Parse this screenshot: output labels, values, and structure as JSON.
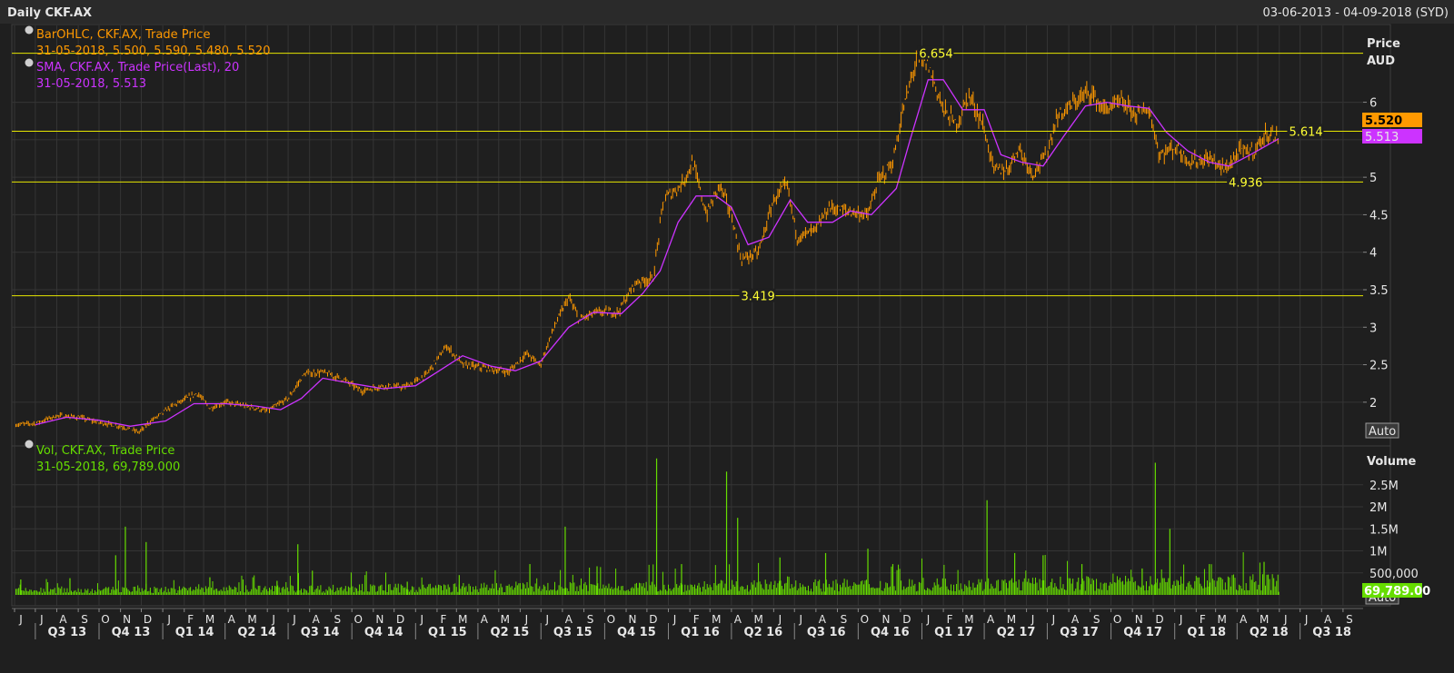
{
  "header": {
    "title": "Daily CKF.AX",
    "range": "03-06-2013 - 04-09-2018 (SYD)"
  },
  "colors": {
    "price": "#ff9900",
    "sma": "#cc33ff",
    "volume": "#66dd00",
    "hline": "#e6e600",
    "grid": "#353535",
    "background": "#1f1f1f"
  },
  "legend": {
    "ohlc_label": "BarOHLC, CKF.AX, Trade Price",
    "ohlc_values": "31-05-2018, 5.500, 5.590, 5.480, 5.520",
    "sma_label": "SMA, CKF.AX, Trade Price(Last),  20",
    "sma_values": "31-05-2018, 5.513",
    "vol_label": "Vol, CKF.AX, Trade Price",
    "vol_values": "31-05-2018, 69,789.000"
  },
  "price_axis": {
    "label_line1": "Price",
    "label_line2": "AUD",
    "last_price": "5.520",
    "last_sma": "5.513",
    "auto": "Auto"
  },
  "volume_axis": {
    "label": "Volume",
    "last_volume": "69,789.00",
    "auto": "Auto"
  },
  "chart_data": [
    {
      "type": "line",
      "title": "Daily CKF.AX",
      "ylabel": "Price AUD",
      "ylim": [
        1.55,
        7.0
      ],
      "yticks": [
        2,
        2.5,
        3,
        3.5,
        4,
        4.5,
        5,
        5.5,
        6
      ],
      "ytick_labels": [
        "2",
        "2.5",
        "3",
        "3.5",
        "4",
        "4.5",
        "5",
        "",
        "6"
      ],
      "x_range": [
        "2013-06-03",
        "2018-09-04"
      ],
      "series": [
        {
          "name": "BarOHLC, CKF.AX, Trade Price",
          "points": [
            [
              "2013-06-03",
              1.7
            ],
            [
              "2013-07-01",
              1.72
            ],
            [
              "2013-08-01",
              1.82
            ],
            [
              "2013-09-01",
              1.8
            ],
            [
              "2013-10-01",
              1.73
            ],
            [
              "2013-11-01",
              1.68
            ],
            [
              "2013-11-28",
              1.6
            ],
            [
              "2013-12-15",
              1.75
            ],
            [
              "2014-01-15",
              1.95
            ],
            [
              "2014-02-20",
              2.12
            ],
            [
              "2014-03-10",
              1.92
            ],
            [
              "2014-04-01",
              2.0
            ],
            [
              "2014-05-01",
              1.95
            ],
            [
              "2014-06-01",
              1.88
            ],
            [
              "2014-07-01",
              2.05
            ],
            [
              "2014-07-25",
              2.38
            ],
            [
              "2014-08-20",
              2.4
            ],
            [
              "2014-09-20",
              2.3
            ],
            [
              "2014-10-15",
              2.15
            ],
            [
              "2014-11-15",
              2.22
            ],
            [
              "2014-12-15",
              2.2
            ],
            [
              "2015-01-15",
              2.35
            ],
            [
              "2015-02-15",
              2.75
            ],
            [
              "2015-03-10",
              2.5
            ],
            [
              "2015-04-15",
              2.45
            ],
            [
              "2015-05-15",
              2.4
            ],
            [
              "2015-06-10",
              2.65
            ],
            [
              "2015-06-30",
              2.5
            ],
            [
              "2015-07-20",
              3.0
            ],
            [
              "2015-08-10",
              3.4
            ],
            [
              "2015-08-25",
              3.1
            ],
            [
              "2015-09-20",
              3.2
            ],
            [
              "2015-10-20",
              3.2
            ],
            [
              "2015-11-15",
              3.6
            ],
            [
              "2015-12-10",
              3.65
            ],
            [
              "2015-12-25",
              4.7
            ],
            [
              "2016-01-20",
              4.9
            ],
            [
              "2016-02-05",
              5.2
            ],
            [
              "2016-02-25",
              4.5
            ],
            [
              "2016-03-15",
              4.9
            ],
            [
              "2016-04-01",
              4.5
            ],
            [
              "2016-04-15",
              3.9
            ],
            [
              "2016-05-10",
              4.0
            ],
            [
              "2016-06-01",
              4.7
            ],
            [
              "2016-06-20",
              4.9
            ],
            [
              "2016-07-05",
              4.2
            ],
            [
              "2016-08-01",
              4.3
            ],
            [
              "2016-08-20",
              4.6
            ],
            [
              "2016-09-15",
              4.55
            ],
            [
              "2016-10-15",
              4.5
            ],
            [
              "2016-10-30",
              4.95
            ],
            [
              "2016-11-20",
              5.2
            ],
            [
              "2016-12-05",
              5.9
            ],
            [
              "2016-12-25",
              6.6
            ],
            [
              "2017-01-10",
              6.5
            ],
            [
              "2017-02-01",
              5.9
            ],
            [
              "2017-02-20",
              5.7
            ],
            [
              "2017-03-10",
              6.1
            ],
            [
              "2017-03-30",
              5.7
            ],
            [
              "2017-04-15",
              5.1
            ],
            [
              "2017-05-05",
              5.1
            ],
            [
              "2017-05-20",
              5.4
            ],
            [
              "2017-06-10",
              5.05
            ],
            [
              "2017-06-30",
              5.3
            ],
            [
              "2017-07-15",
              5.8
            ],
            [
              "2017-08-10",
              6.0
            ],
            [
              "2017-09-01",
              6.15
            ],
            [
              "2017-09-20",
              5.9
            ],
            [
              "2017-10-15",
              6.0
            ],
            [
              "2017-11-05",
              5.85
            ],
            [
              "2017-11-25",
              5.9
            ],
            [
              "2017-12-10",
              5.3
            ],
            [
              "2018-01-01",
              5.4
            ],
            [
              "2018-01-25",
              5.2
            ],
            [
              "2018-02-20",
              5.25
            ],
            [
              "2018-03-15",
              5.1
            ],
            [
              "2018-04-05",
              5.35
            ],
            [
              "2018-04-25",
              5.35
            ],
            [
              "2018-05-15",
              5.6
            ],
            [
              "2018-05-31",
              5.52
            ]
          ]
        },
        {
          "name": "SMA, CKF.AX, Trade Price(Last),  20",
          "points": [
            [
              "2013-07-01",
              1.7
            ],
            [
              "2013-08-15",
              1.8
            ],
            [
              "2013-10-01",
              1.76
            ],
            [
              "2013-11-15",
              1.68
            ],
            [
              "2014-01-05",
              1.75
            ],
            [
              "2014-02-15",
              1.98
            ],
            [
              "2014-04-01",
              1.98
            ],
            [
              "2014-05-15",
              1.95
            ],
            [
              "2014-06-20",
              1.9
            ],
            [
              "2014-07-20",
              2.05
            ],
            [
              "2014-08-20",
              2.32
            ],
            [
              "2014-10-01",
              2.25
            ],
            [
              "2014-11-15",
              2.18
            ],
            [
              "2015-01-01",
              2.22
            ],
            [
              "2015-02-01",
              2.4
            ],
            [
              "2015-03-10",
              2.62
            ],
            [
              "2015-04-20",
              2.48
            ],
            [
              "2015-05-25",
              2.42
            ],
            [
              "2015-07-01",
              2.55
            ],
            [
              "2015-08-10",
              3.0
            ],
            [
              "2015-09-15",
              3.2
            ],
            [
              "2015-10-25",
              3.18
            ],
            [
              "2015-11-25",
              3.45
            ],
            [
              "2015-12-20",
              3.75
            ],
            [
              "2016-01-15",
              4.4
            ],
            [
              "2016-02-10",
              4.75
            ],
            [
              "2016-03-10",
              4.75
            ],
            [
              "2016-04-01",
              4.6
            ],
            [
              "2016-04-25",
              4.1
            ],
            [
              "2016-05-25",
              4.2
            ],
            [
              "2016-06-25",
              4.7
            ],
            [
              "2016-07-20",
              4.4
            ],
            [
              "2016-08-25",
              4.4
            ],
            [
              "2016-09-20",
              4.55
            ],
            [
              "2016-10-20",
              4.5
            ],
            [
              "2016-11-25",
              4.85
            ],
            [
              "2016-12-15",
              5.5
            ],
            [
              "2017-01-10",
              6.3
            ],
            [
              "2017-02-01",
              6.3
            ],
            [
              "2017-03-01",
              5.9
            ],
            [
              "2017-04-01",
              5.9
            ],
            [
              "2017-04-25",
              5.3
            ],
            [
              "2017-05-25",
              5.2
            ],
            [
              "2017-06-25",
              5.15
            ],
            [
              "2017-07-25",
              5.55
            ],
            [
              "2017-08-25",
              5.95
            ],
            [
              "2017-09-25",
              6.0
            ],
            [
              "2017-10-25",
              5.95
            ],
            [
              "2017-11-25",
              5.92
            ],
            [
              "2017-12-20",
              5.6
            ],
            [
              "2018-01-20",
              5.35
            ],
            [
              "2018-02-20",
              5.2
            ],
            [
              "2018-03-20",
              5.15
            ],
            [
              "2018-04-20",
              5.3
            ],
            [
              "2018-05-31",
              5.513
            ]
          ]
        }
      ],
      "reference_lines": [
        {
          "value": 6.654,
          "label": "6.654",
          "label_date": "2016-12-28"
        },
        {
          "value": 5.614,
          "label": "5.614",
          "label_date": "2018-06-15"
        },
        {
          "value": 4.936,
          "label": "4.936",
          "label_date": "2018-03-20"
        },
        {
          "value": 3.419,
          "label": "3.419",
          "label_date": "2016-04-15"
        }
      ]
    },
    {
      "type": "bar",
      "title": "Volume",
      "ylabel": "Volume",
      "ylim": [
        0,
        3300000
      ],
      "yticks": [
        500000,
        1000000,
        1500000,
        2000000,
        2500000
      ],
      "ytick_labels": [
        "500,000",
        "1M",
        "1.5M",
        "2M",
        "2.5M"
      ],
      "series": [
        {
          "name": "Vol, CKF.AX, Trade Price",
          "baseline": 120000,
          "spikes": [
            [
              "2013-06-10",
              350000
            ],
            [
              "2013-08-20",
              380000
            ],
            [
              "2013-10-25",
              900000
            ],
            [
              "2013-11-08",
              1550000
            ],
            [
              "2013-12-08",
              1200000
            ],
            [
              "2014-03-10",
              400000
            ],
            [
              "2014-06-15",
              320000
            ],
            [
              "2014-07-15",
              1150000
            ],
            [
              "2014-08-05",
              550000
            ],
            [
              "2014-12-20",
              300000
            ],
            [
              "2015-03-05",
              450000
            ],
            [
              "2015-06-15",
              700000
            ],
            [
              "2015-08-05",
              1550000
            ],
            [
              "2015-09-20",
              650000
            ],
            [
              "2015-12-15",
              3100000
            ],
            [
              "2016-01-20",
              700000
            ],
            [
              "2016-03-25",
              2800000
            ],
            [
              "2016-04-10",
              1750000
            ],
            [
              "2016-06-10",
              850000
            ],
            [
              "2016-08-15",
              950000
            ],
            [
              "2016-10-15",
              1050000
            ],
            [
              "2016-11-20",
              700000
            ],
            [
              "2017-04-05",
              2150000
            ],
            [
              "2017-05-15",
              950000
            ],
            [
              "2017-06-25",
              900000
            ],
            [
              "2017-08-20",
              700000
            ],
            [
              "2017-11-15",
              600000
            ],
            [
              "2017-12-04",
              3000000
            ],
            [
              "2017-12-25",
              1500000
            ],
            [
              "2018-02-20",
              700000
            ],
            [
              "2018-05-10",
              750000
            ],
            [
              "2018-05-31",
              69789
            ]
          ]
        }
      ]
    }
  ],
  "x_axis": {
    "months": [
      "J",
      "J",
      "A",
      "S",
      "O",
      "N",
      "D",
      "J",
      "F",
      "M",
      "A",
      "M",
      "J",
      "J",
      "A",
      "S",
      "O",
      "N",
      "D",
      "J",
      "F",
      "M",
      "A",
      "M",
      "J",
      "J",
      "A",
      "S",
      "O",
      "N",
      "D",
      "J",
      "F",
      "M",
      "A",
      "M",
      "J",
      "J",
      "A",
      "S",
      "O",
      "N",
      "D",
      "J",
      "F",
      "M",
      "A",
      "M",
      "J",
      "J",
      "A",
      "S",
      "O",
      "N",
      "D",
      "J",
      "F",
      "M",
      "A",
      "M",
      "J",
      "J",
      "A",
      "S"
    ],
    "quarters": [
      "Q3 13",
      "Q4 13",
      "Q1 14",
      "Q2 14",
      "Q3 14",
      "Q4 14",
      "Q1 15",
      "Q2 15",
      "Q3 15",
      "Q4 15",
      "Q1 16",
      "Q2 16",
      "Q3 16",
      "Q4 16",
      "Q1 17",
      "Q2 17",
      "Q3 17",
      "Q4 17",
      "Q1 18",
      "Q2 18",
      "Q3 18"
    ]
  }
}
